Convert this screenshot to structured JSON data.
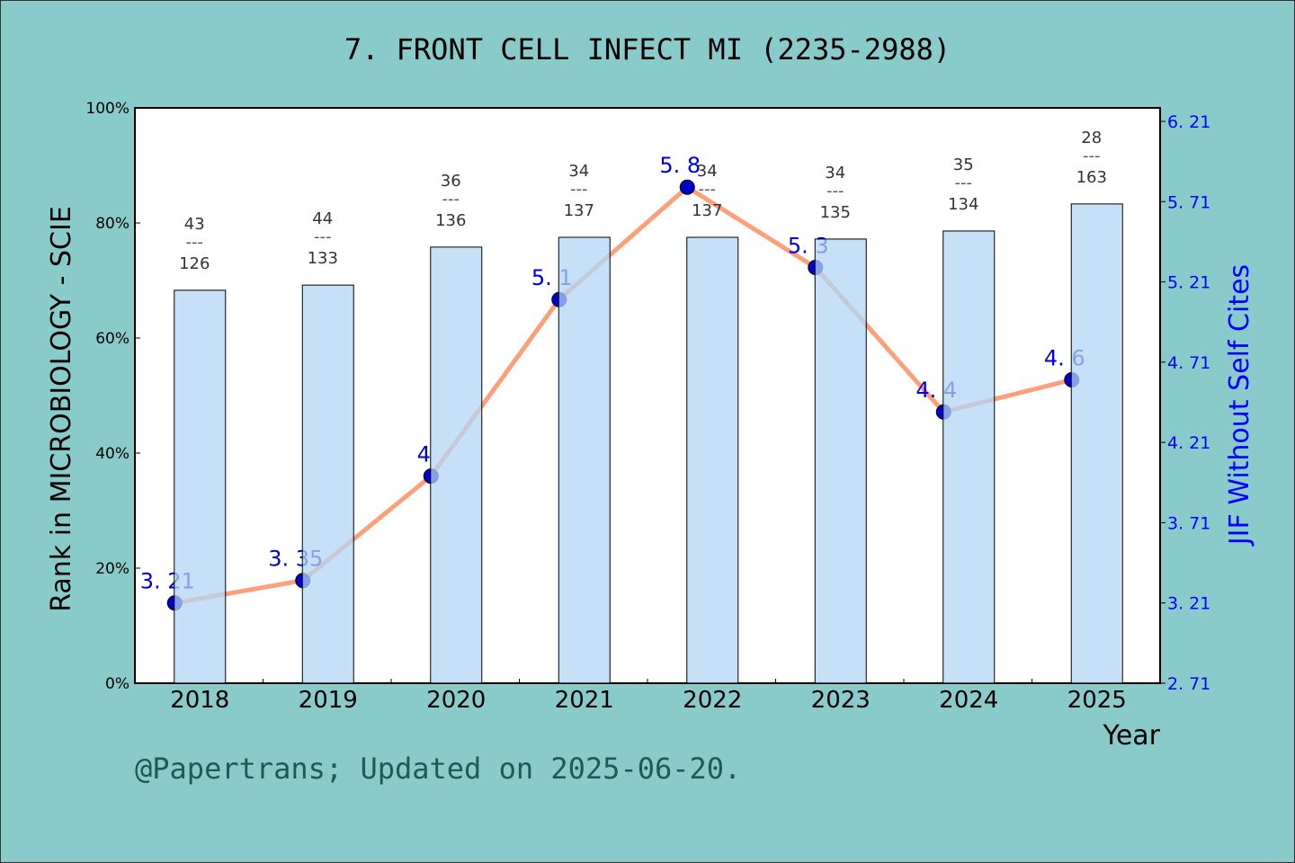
{
  "title": "7. FRONT CELL INFECT MI (2235-2988)",
  "footer": "@Papertrans; Updated on 2025-06-20.",
  "chart_data": {
    "type": "bar+line",
    "categories": [
      "2018",
      "2019",
      "2020",
      "2021",
      "2022",
      "2023",
      "2024",
      "2025"
    ],
    "xlabel": "Year",
    "ylabel": "Rank in MICROBIOLOGY - SCIE",
    "y2label": "JIF Without Self Cites",
    "ylim": [
      0,
      100
    ],
    "yticks": [
      "0%",
      "20%",
      "40%",
      "60%",
      "80%",
      "100%"
    ],
    "y2lim": [
      2.71,
      6.21
    ],
    "y2ticks": [
      "2.71",
      "3.21",
      "3.71",
      "4.21",
      "4.71",
      "5.21",
      "5.71",
      "6.21"
    ],
    "bars": {
      "values_percent": [
        68.3,
        69.2,
        75.8,
        77.5,
        77.5,
        77.2,
        78.6,
        83.3
      ],
      "rank": [
        "43",
        "44",
        "36",
        "34",
        "34",
        "34",
        "35",
        "28"
      ],
      "total": [
        "126",
        "133",
        "136",
        "137",
        "137",
        "135",
        "134",
        "163"
      ],
      "separator": "---",
      "color": "#c5e0f7"
    },
    "line": {
      "values": [
        3.21,
        3.35,
        4,
        5.1,
        5.8,
        5.3,
        4.4,
        4.6
      ],
      "labels": [
        "3.21",
        "3.35",
        "4",
        "5.1",
        "5.8",
        "5.3",
        "4.4",
        "4.6"
      ],
      "color": "#ff9f7a",
      "marker_color": "#0000cc"
    },
    "y2_color": "#0000ff",
    "grid": false
  }
}
